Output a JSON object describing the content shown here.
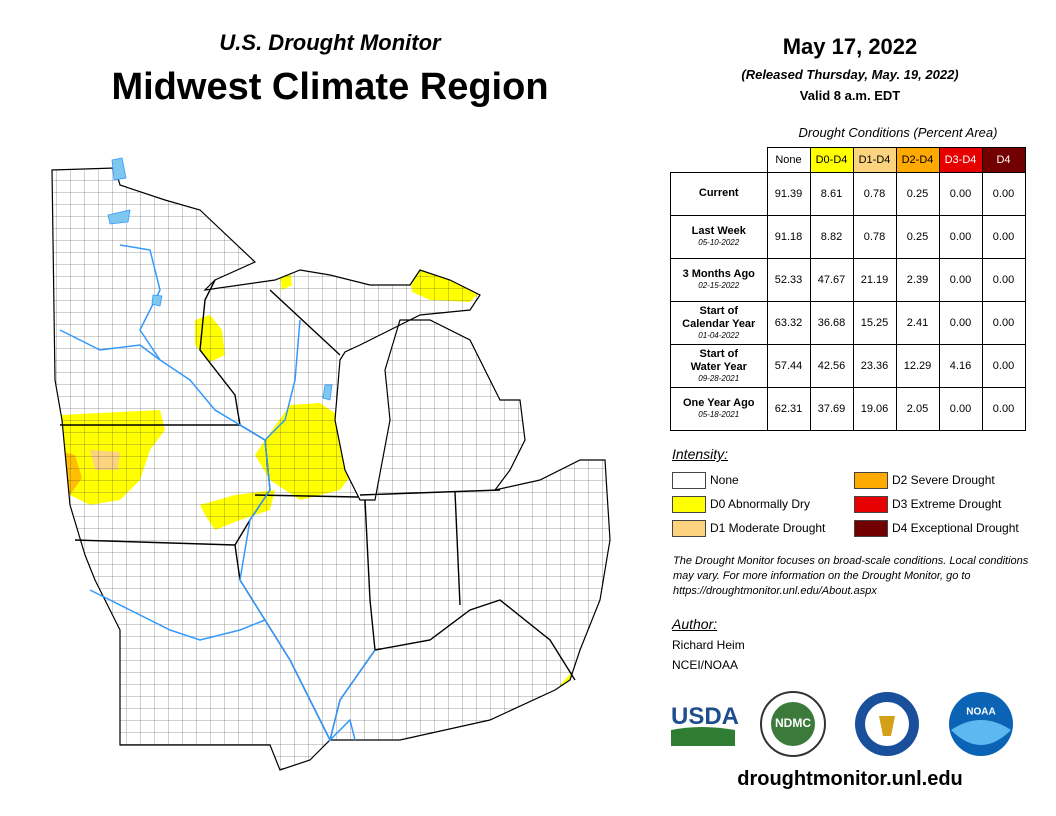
{
  "header": {
    "subtitle": "U.S. Drought Monitor",
    "title": "Midwest Climate Region"
  },
  "date": {
    "date": "May 17, 2022",
    "released": "(Released Thursday, May. 19, 2022)",
    "valid": "Valid 8 a.m. EDT"
  },
  "table": {
    "caption": "Drought Conditions (Percent Area)",
    "columns": [
      {
        "label": "None",
        "color": "#ffffff"
      },
      {
        "label": "D0-D4",
        "color": "#ffff00"
      },
      {
        "label": "D1-D4",
        "color": "#fcd37f"
      },
      {
        "label": "D2-D4",
        "color": "#ffaa00"
      },
      {
        "label": "D3-D4",
        "color": "#e60000"
      },
      {
        "label": "D4",
        "color": "#730000"
      }
    ],
    "rows": [
      {
        "label": [
          "Current"
        ],
        "values": [
          "91.39",
          "8.61",
          "0.78",
          "0.25",
          "0.00",
          "0.00"
        ]
      },
      {
        "label": [
          "Last Week"
        ],
        "date": "05-10-2022",
        "values": [
          "91.18",
          "8.82",
          "0.78",
          "0.25",
          "0.00",
          "0.00"
        ]
      },
      {
        "label": [
          "3 Months Ago"
        ],
        "date": "02-15-2022",
        "values": [
          "52.33",
          "47.67",
          "21.19",
          "2.39",
          "0.00",
          "0.00"
        ]
      },
      {
        "label": [
          "Start of",
          "Calendar Year"
        ],
        "date": "01-04-2022",
        "values": [
          "63.32",
          "36.68",
          "15.25",
          "2.41",
          "0.00",
          "0.00"
        ]
      },
      {
        "label": [
          "Start of",
          "Water Year"
        ],
        "date": "09-28-2021",
        "values": [
          "57.44",
          "42.56",
          "23.36",
          "12.29",
          "4.16",
          "0.00"
        ]
      },
      {
        "label": [
          "One Year Ago"
        ],
        "date": "05-18-2021",
        "values": [
          "62.31",
          "37.69",
          "19.06",
          "2.05",
          "0.00",
          "0.00"
        ]
      }
    ]
  },
  "legend": {
    "title": "Intensity:",
    "items": [
      {
        "label": "None",
        "color": "#ffffff"
      },
      {
        "label": "D0 Abnormally Dry",
        "color": "#ffff00"
      },
      {
        "label": "D1 Moderate Drought",
        "color": "#fcd37f"
      },
      {
        "label": "D2 Severe Drought",
        "color": "#ffaa00"
      },
      {
        "label": "D3 Extreme Drought",
        "color": "#e60000"
      },
      {
        "label": "D4 Exceptional Drought",
        "color": "#730000"
      }
    ]
  },
  "note": "The Drought Monitor focuses on broad-scale conditions. Local conditions may vary. For more information on the Drought Monitor, go to https://droughtmonitor.unl.edu/About.aspx",
  "author": {
    "title": "Author:",
    "name": "Richard Heim",
    "org": "NCEI/NOAA"
  },
  "logos": [
    "USDA",
    "NDMC",
    "NOAA"
  ],
  "url": "droughtmonitor.unl.edu"
}
